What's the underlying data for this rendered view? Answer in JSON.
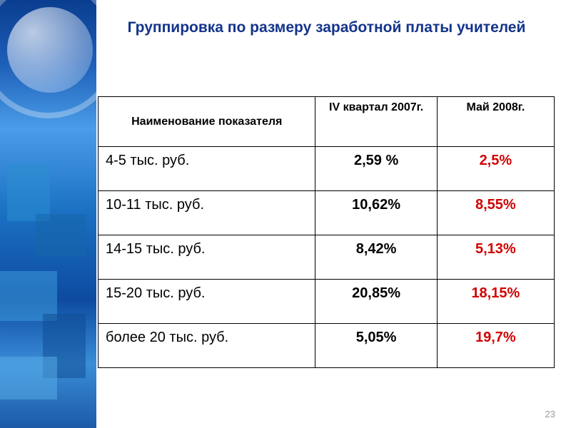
{
  "title": "Группировка по размеру заработной платы учителей",
  "table": {
    "columns": [
      "Наименование показателя",
      "IV квартал 2007г.",
      "Май 2008г."
    ],
    "rows": [
      {
        "label": "4-5 тыс. руб.",
        "q4_2007": "2,59 %",
        "may_2008": "2,5%",
        "may_color": "#d10000"
      },
      {
        "label": "10-11 тыс. руб.",
        "q4_2007": "10,62%",
        "may_2008": "8,55%",
        "may_color": "#d10000"
      },
      {
        "label": "14-15 тыс. руб.",
        "q4_2007": "8,42%",
        "may_2008": "5,13%",
        "may_color": "#d10000"
      },
      {
        "label": "15-20 тыс. руб.",
        "q4_2007": "20,85%",
        "may_2008": "18,15%",
        "may_color": "#d10000"
      },
      {
        "label": "более 20 тыс. руб.",
        "q4_2007": "5,05%",
        "may_2008": "19,7%",
        "may_color": "#d10000"
      }
    ]
  },
  "page_number": "23",
  "styling": {
    "title_color": "#13348b",
    "title_fontsize": 21,
    "body_font": "Arial",
    "highlight_color": "#d10000",
    "sidebar_gradient": [
      "#0a3d8f",
      "#1e5fb8",
      "#4a9de8",
      "#1a6fc2",
      "#0d4ba0",
      "#3a8dd8",
      "#1c5aa8"
    ],
    "table_border_color": "#000000",
    "cell_fontsize": 20,
    "header_fontsize": 16
  }
}
